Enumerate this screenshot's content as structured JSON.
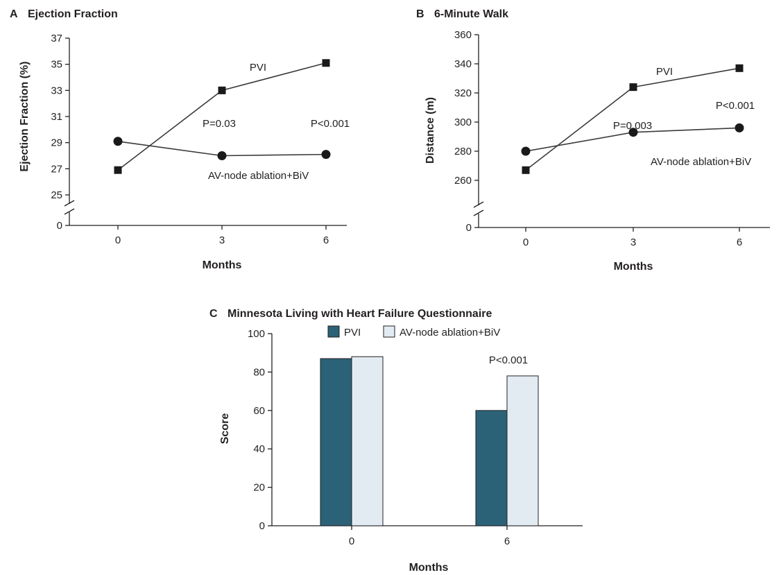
{
  "chart_data": [
    {
      "panel": "A",
      "title": "Ejection Fraction",
      "type": "line",
      "xlabel": "Months",
      "ylabel": "Ejection Fraction (%)",
      "x": [
        0,
        3,
        6
      ],
      "x_ticks": [
        "0",
        "3",
        "6"
      ],
      "y_ticks": [
        25,
        27,
        29,
        31,
        33,
        35,
        37
      ],
      "y_zero_label": "0",
      "ylim": [
        25,
        37
      ],
      "axis_break": true,
      "series": [
        {
          "name": "PVI",
          "marker": "square",
          "values": [
            26.9,
            33.0,
            35.1
          ]
        },
        {
          "name": "AV-node ablation+BiV",
          "marker": "circle",
          "values": [
            29.1,
            28.0,
            28.1
          ]
        }
      ],
      "annotations": [
        "P=0.03",
        "P<0.001"
      ]
    },
    {
      "panel": "B",
      "title": "6-Minute Walk",
      "type": "line",
      "xlabel": "Months",
      "ylabel": "Distance (m)",
      "x": [
        0,
        3,
        6
      ],
      "x_ticks": [
        "0",
        "3",
        "6"
      ],
      "y_ticks": [
        260,
        280,
        300,
        320,
        340,
        360
      ],
      "y_zero_label": "0",
      "ylim": [
        250,
        360
      ],
      "axis_break": true,
      "series": [
        {
          "name": "PVI",
          "marker": "square",
          "values": [
            267,
            324,
            337
          ]
        },
        {
          "name": "AV-node ablation+BiV",
          "marker": "circle",
          "values": [
            280,
            293,
            296
          ]
        }
      ],
      "annotations": [
        "P=0.003",
        "P<0.001"
      ]
    },
    {
      "panel": "C",
      "title": "Minnesota Living with Heart Failure Questionnaire",
      "type": "bar",
      "xlabel": "Months",
      "ylabel": "Score",
      "categories": [
        "0",
        "6"
      ],
      "y_ticks": [
        0,
        20,
        40,
        60,
        80,
        100
      ],
      "ylim": [
        0,
        100
      ],
      "legend_position": "top",
      "series": [
        {
          "name": "PVI",
          "color": "#2b6278",
          "values": [
            87,
            60
          ]
        },
        {
          "name": "AV-node ablation+BiV",
          "color": "#e3ebf2",
          "values": [
            88,
            78
          ]
        }
      ],
      "annotations": [
        "P<0.001"
      ]
    }
  ]
}
